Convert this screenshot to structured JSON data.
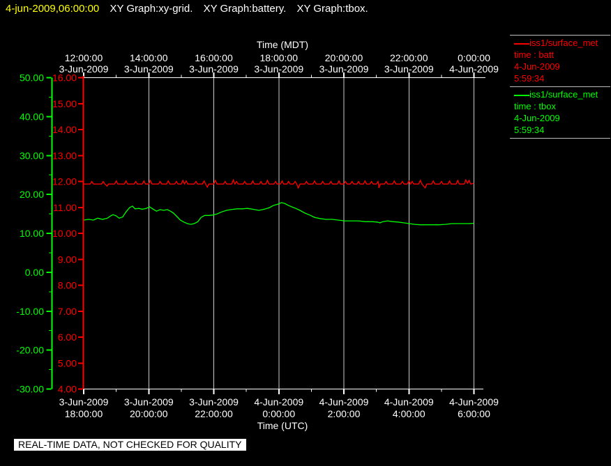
{
  "title_bar": {
    "timestamp": "4-jun-2009,06:00:00",
    "graph_titles": [
      "XY Graph:xy-grid.",
      "XY Graph:battery.",
      "XY Graph:tbox."
    ]
  },
  "legend": {
    "entries": [
      {
        "source": "iss1/surface_met",
        "field": "time : batt",
        "date": "4-Jun-2009",
        "time": "5:59:34",
        "color": "#ff0000"
      },
      {
        "source": "iss1/surface_met",
        "field": "time : tbox",
        "date": "4-Jun-2009",
        "time": "5:59:34",
        "color": "#00ff00"
      }
    ]
  },
  "footer": {
    "disclaimer": "REAL-TIME DATA, NOT CHECKED FOR QUALITY"
  },
  "colors": {
    "background": "#000000",
    "title_timestamp": "#ffff00",
    "axis_time": "#ffffff",
    "axis_batt": "#ff0000",
    "axis_tbox": "#00ff00",
    "grid": "#cccccc",
    "legend_divider": "#bebebe"
  },
  "chart_data": {
    "type": "line",
    "grid": {
      "vertical_every_hours": 2,
      "color": "#cccccc"
    },
    "axes": {
      "top": {
        "title": "Time (MDT)",
        "ticks": [
          {
            "time": "12:00:00",
            "date": "3-Jun-2009"
          },
          {
            "time": "14:00:00",
            "date": "3-Jun-2009"
          },
          {
            "time": "16:00:00",
            "date": "3-Jun-2009"
          },
          {
            "time": "18:00:00",
            "date": "3-Jun-2009"
          },
          {
            "time": "20:00:00",
            "date": "3-Jun-2009"
          },
          {
            "time": "22:00:00",
            "date": "3-Jun-2009"
          },
          {
            "time": "0:00:00",
            "date": "4-Jun-2009"
          }
        ]
      },
      "bottom": {
        "title": "Time (UTC)",
        "ticks": [
          {
            "date": "3-Jun-2009",
            "time": "18:00:00"
          },
          {
            "date": "3-Jun-2009",
            "time": "20:00:00"
          },
          {
            "date": "3-Jun-2009",
            "time": "22:00:00"
          },
          {
            "date": "4-Jun-2009",
            "time": "0:00:00"
          },
          {
            "date": "4-Jun-2009",
            "time": "2:00:00"
          },
          {
            "date": "4-Jun-2009",
            "time": "4:00:00"
          },
          {
            "date": "4-Jun-2009",
            "time": "6:00:00"
          }
        ]
      },
      "left_outer": {
        "color": "#00ff00",
        "range": [
          -30,
          50
        ],
        "tick_values": [
          50,
          40,
          30,
          20,
          10,
          0,
          -10,
          -20,
          -30
        ],
        "tick_labels": [
          "50.00",
          "40.00",
          "30.00",
          "20.00",
          "10.00",
          "0.00",
          "-10.00",
          "-20.00",
          "-30.00"
        ],
        "minor_tick_values": [
          45,
          35,
          25,
          15,
          5,
          -5,
          -15,
          -25
        ]
      },
      "left_inner": {
        "color": "#ff0000",
        "range": [
          4,
          16
        ],
        "tick_values": [
          16,
          15,
          14,
          13,
          12,
          11,
          10,
          9,
          8,
          7,
          6,
          5,
          4
        ],
        "tick_labels": [
          "16.00",
          "15.00",
          "14.00",
          "13.00",
          "12.00",
          "11.00",
          "10.00",
          "9.00",
          "8.00",
          "7.00",
          "6.00",
          "5.00",
          "4.00"
        ]
      }
    },
    "x_axis": {
      "start_utc": "3-Jun-2009 18:00:00",
      "end_utc": "4-Jun-2009 6:00:00",
      "duration_hours": 12
    },
    "series": [
      {
        "name": "batt",
        "color": "#ff0000",
        "axis": "left_inner",
        "points_hours_vs_value": [
          [
            0,
            11.9
          ],
          [
            0.2,
            11.9
          ],
          [
            0.25,
            12.0
          ],
          [
            0.3,
            11.9
          ],
          [
            0.55,
            11.9
          ],
          [
            0.6,
            12.0
          ],
          [
            0.65,
            11.9
          ],
          [
            0.72,
            11.82
          ],
          [
            0.76,
            11.9
          ],
          [
            0.95,
            11.9
          ],
          [
            1.0,
            12.02
          ],
          [
            1.05,
            11.9
          ],
          [
            1.25,
            11.9
          ],
          [
            1.3,
            12.02
          ],
          [
            1.35,
            11.9
          ],
          [
            1.55,
            11.9
          ],
          [
            1.6,
            12.0
          ],
          [
            1.65,
            11.9
          ],
          [
            1.8,
            11.9
          ],
          [
            1.85,
            12.02
          ],
          [
            1.9,
            11.9
          ],
          [
            2.0,
            11.9
          ],
          [
            2.05,
            12.04
          ],
          [
            2.1,
            11.9
          ],
          [
            2.3,
            11.9
          ],
          [
            2.35,
            12.0
          ],
          [
            2.4,
            11.9
          ],
          [
            2.55,
            11.9
          ],
          [
            2.6,
            12.02
          ],
          [
            2.65,
            11.9
          ],
          [
            2.8,
            11.9
          ],
          [
            2.85,
            12.0
          ],
          [
            2.9,
            11.9
          ],
          [
            3.0,
            11.9
          ],
          [
            3.05,
            12.04
          ],
          [
            3.1,
            11.9
          ],
          [
            3.15,
            12.02
          ],
          [
            3.2,
            11.9
          ],
          [
            3.4,
            11.9
          ],
          [
            3.45,
            12.0
          ],
          [
            3.5,
            11.9
          ],
          [
            3.65,
            11.9
          ],
          [
            3.7,
            12.02
          ],
          [
            3.75,
            11.9
          ],
          [
            3.8,
            11.78
          ],
          [
            3.85,
            11.9
          ],
          [
            4.0,
            11.9
          ],
          [
            4.05,
            12.04
          ],
          [
            4.1,
            11.9
          ],
          [
            4.3,
            11.9
          ],
          [
            4.35,
            12.0
          ],
          [
            4.4,
            11.9
          ],
          [
            4.55,
            11.9
          ],
          [
            4.6,
            12.06
          ],
          [
            4.65,
            11.9
          ],
          [
            4.7,
            12.0
          ],
          [
            4.75,
            11.9
          ],
          [
            4.9,
            11.9
          ],
          [
            4.95,
            12.0
          ],
          [
            5.0,
            11.9
          ],
          [
            5.15,
            11.9
          ],
          [
            5.2,
            12.02
          ],
          [
            5.25,
            11.9
          ],
          [
            5.4,
            11.9
          ],
          [
            5.45,
            12.0
          ],
          [
            5.5,
            11.9
          ],
          [
            5.6,
            11.9
          ],
          [
            5.65,
            12.04
          ],
          [
            5.7,
            11.9
          ],
          [
            5.85,
            11.9
          ],
          [
            5.9,
            12.0
          ],
          [
            5.95,
            11.9
          ],
          [
            6.05,
            11.9
          ],
          [
            6.1,
            12.02
          ],
          [
            6.15,
            11.9
          ],
          [
            6.25,
            11.9
          ],
          [
            6.3,
            12.0
          ],
          [
            6.35,
            11.9
          ],
          [
            6.45,
            11.9
          ],
          [
            6.5,
            12.0
          ],
          [
            6.55,
            11.9
          ],
          [
            6.6,
            11.75
          ],
          [
            6.65,
            11.9
          ],
          [
            6.8,
            11.9
          ],
          [
            6.85,
            12.0
          ],
          [
            6.9,
            11.9
          ],
          [
            7.05,
            11.9
          ],
          [
            7.1,
            12.02
          ],
          [
            7.15,
            11.9
          ],
          [
            7.3,
            11.9
          ],
          [
            7.35,
            12.0
          ],
          [
            7.4,
            11.9
          ],
          [
            7.55,
            11.9
          ],
          [
            7.6,
            12.0
          ],
          [
            7.65,
            11.9
          ],
          [
            7.8,
            11.9
          ],
          [
            7.85,
            12.02
          ],
          [
            7.9,
            11.9
          ],
          [
            8.0,
            11.9
          ],
          [
            8.05,
            12.0
          ],
          [
            8.1,
            11.9
          ],
          [
            8.2,
            11.9
          ],
          [
            8.25,
            12.0
          ],
          [
            8.3,
            11.9
          ],
          [
            8.4,
            11.9
          ],
          [
            8.45,
            12.0
          ],
          [
            8.5,
            11.9
          ],
          [
            8.6,
            11.9
          ],
          [
            8.65,
            12.02
          ],
          [
            8.7,
            11.9
          ],
          [
            8.8,
            11.9
          ],
          [
            8.85,
            12.0
          ],
          [
            8.9,
            11.9
          ],
          [
            9.0,
            11.9
          ],
          [
            9.05,
            12.0
          ],
          [
            9.08,
            11.75
          ],
          [
            9.12,
            11.9
          ],
          [
            9.25,
            11.9
          ],
          [
            9.3,
            12.0
          ],
          [
            9.35,
            11.9
          ],
          [
            9.5,
            11.9
          ],
          [
            9.55,
            12.02
          ],
          [
            9.6,
            11.9
          ],
          [
            9.75,
            11.9
          ],
          [
            9.8,
            12.0
          ],
          [
            9.85,
            11.9
          ],
          [
            9.95,
            11.9
          ],
          [
            10.0,
            12.02
          ],
          [
            10.05,
            11.9
          ],
          [
            10.1,
            12.0
          ],
          [
            10.15,
            11.9
          ],
          [
            10.3,
            11.9
          ],
          [
            10.35,
            12.04
          ],
          [
            10.4,
            11.9
          ],
          [
            10.5,
            11.75
          ],
          [
            10.55,
            11.9
          ],
          [
            10.7,
            11.9
          ],
          [
            10.75,
            12.02
          ],
          [
            10.8,
            11.9
          ],
          [
            10.95,
            11.9
          ],
          [
            11.0,
            12.0
          ],
          [
            11.05,
            11.9
          ],
          [
            11.2,
            11.9
          ],
          [
            11.25,
            12.02
          ],
          [
            11.3,
            11.9
          ],
          [
            11.45,
            11.9
          ],
          [
            11.5,
            12.04
          ],
          [
            11.55,
            11.9
          ],
          [
            11.7,
            11.9
          ],
          [
            11.75,
            12.06
          ],
          [
            11.8,
            11.93
          ],
          [
            11.85,
            12.04
          ],
          [
            11.9,
            11.9
          ],
          [
            12.0,
            11.93
          ]
        ]
      },
      {
        "name": "tbox",
        "color": "#00ff00",
        "axis": "left_outer",
        "points_hours_vs_value": [
          [
            0.0,
            13.4
          ],
          [
            0.15,
            13.6
          ],
          [
            0.3,
            13.4
          ],
          [
            0.43,
            13.9
          ],
          [
            0.58,
            13.6
          ],
          [
            0.73,
            13.9
          ],
          [
            0.83,
            14.5
          ],
          [
            0.9,
            14.8
          ],
          [
            1.0,
            14.5
          ],
          [
            1.09,
            13.9
          ],
          [
            1.2,
            14.2
          ],
          [
            1.3,
            15.5
          ],
          [
            1.41,
            16.6
          ],
          [
            1.5,
            17.0
          ],
          [
            1.58,
            16.3
          ],
          [
            1.7,
            16.4
          ],
          [
            1.8,
            16.2
          ],
          [
            1.92,
            16.4
          ],
          [
            2.03,
            16.8
          ],
          [
            2.12,
            16.3
          ],
          [
            2.24,
            15.7
          ],
          [
            2.35,
            16.1
          ],
          [
            2.46,
            15.9
          ],
          [
            2.57,
            16.1
          ],
          [
            2.67,
            15.7
          ],
          [
            2.76,
            15.2
          ],
          [
            2.87,
            14.3
          ],
          [
            2.97,
            13.4
          ],
          [
            3.08,
            12.9
          ],
          [
            3.19,
            12.5
          ],
          [
            3.29,
            12.3
          ],
          [
            3.4,
            12.5
          ],
          [
            3.51,
            13.0
          ],
          [
            3.61,
            14.1
          ],
          [
            3.72,
            14.6
          ],
          [
            3.85,
            14.6
          ],
          [
            3.97,
            14.7
          ],
          [
            4.1,
            15.0
          ],
          [
            4.24,
            15.5
          ],
          [
            4.39,
            15.9
          ],
          [
            4.53,
            16.1
          ],
          [
            4.71,
            16.3
          ],
          [
            4.88,
            16.3
          ],
          [
            5.03,
            16.4
          ],
          [
            5.13,
            16.3
          ],
          [
            5.26,
            16.1
          ],
          [
            5.39,
            15.9
          ],
          [
            5.5,
            16.1
          ],
          [
            5.6,
            16.3
          ],
          [
            5.71,
            16.6
          ],
          [
            5.84,
            17.2
          ],
          [
            5.97,
            17.5
          ],
          [
            6.08,
            17.9
          ],
          [
            6.18,
            17.7
          ],
          [
            6.29,
            17.2
          ],
          [
            6.4,
            16.8
          ],
          [
            6.52,
            16.4
          ],
          [
            6.65,
            15.9
          ],
          [
            6.8,
            15.2
          ],
          [
            6.95,
            14.7
          ],
          [
            7.1,
            14.1
          ],
          [
            7.27,
            13.8
          ],
          [
            7.44,
            13.6
          ],
          [
            7.64,
            13.6
          ],
          [
            7.83,
            13.4
          ],
          [
            8.02,
            13.2
          ],
          [
            8.23,
            13.2
          ],
          [
            8.45,
            13.2
          ],
          [
            8.66,
            13.0
          ],
          [
            8.86,
            13.0
          ],
          [
            9.03,
            12.9
          ],
          [
            9.11,
            12.7
          ],
          [
            9.2,
            13.0
          ],
          [
            9.35,
            13.2
          ],
          [
            9.5,
            13.0
          ],
          [
            9.67,
            12.9
          ],
          [
            9.84,
            12.7
          ],
          [
            10.01,
            12.5
          ],
          [
            10.18,
            12.3
          ],
          [
            10.35,
            12.2
          ],
          [
            10.54,
            12.2
          ],
          [
            10.74,
            12.2
          ],
          [
            10.93,
            12.2
          ],
          [
            11.12,
            12.3
          ],
          [
            11.32,
            12.5
          ],
          [
            11.51,
            12.5
          ],
          [
            11.7,
            12.5
          ],
          [
            11.85,
            12.5
          ],
          [
            12.0,
            12.6
          ]
        ]
      }
    ]
  }
}
